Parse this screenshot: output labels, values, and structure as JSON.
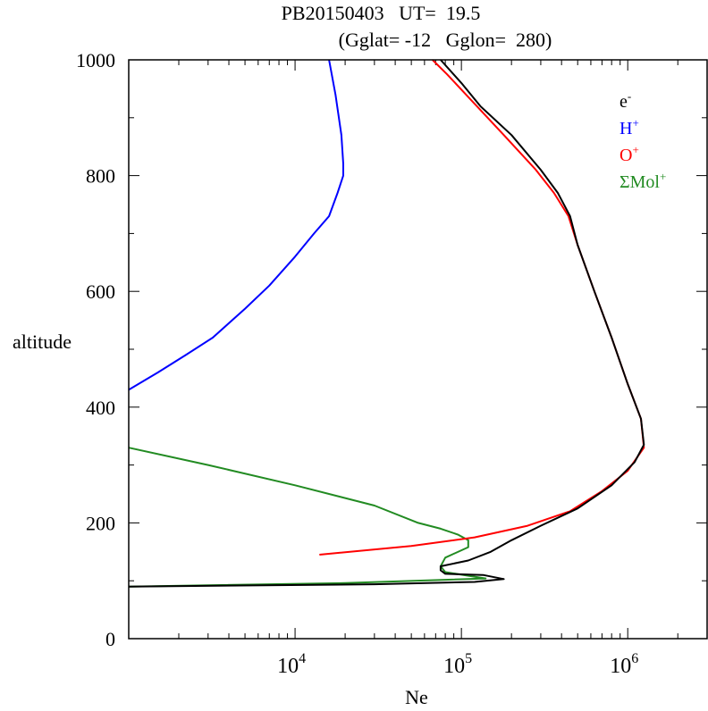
{
  "chart_data": {
    "type": "line",
    "title": "PB20150403   UT=  19.5",
    "subtitle": "(Gglat= -12   Gglon=  280)",
    "xlabel": "Ne",
    "ylabel": "altitude",
    "xscale": "log",
    "xlim": [
      1000,
      3000000
    ],
    "ylim": [
      0,
      1000
    ],
    "x_ticks": [
      {
        "base": "10",
        "exp": "4",
        "value": 10000
      },
      {
        "base": "10",
        "exp": "5",
        "value": 100000
      },
      {
        "base": "10",
        "exp": "6",
        "value": 1000000
      }
    ],
    "y_ticks": [
      "0",
      "200",
      "400",
      "600",
      "800",
      "1000"
    ],
    "grid": false,
    "legend_placement": "top-right",
    "series": [
      {
        "label_base": "e",
        "label_sup": "-",
        "color": "#000000",
        "points": [
          [
            1000,
            90
          ],
          [
            2500,
            91
          ],
          [
            30000,
            94
          ],
          [
            120000,
            98
          ],
          [
            180000,
            103
          ],
          [
            135000,
            110
          ],
          [
            80000,
            112
          ],
          [
            75000,
            118
          ],
          [
            75000,
            125
          ],
          [
            110000,
            135
          ],
          [
            150000,
            150
          ],
          [
            200000,
            170
          ],
          [
            300000,
            195
          ],
          [
            500000,
            225
          ],
          [
            800000,
            265
          ],
          [
            1100000,
            305
          ],
          [
            1250000,
            335
          ],
          [
            1200000,
            380
          ],
          [
            1000000,
            440
          ],
          [
            800000,
            520
          ],
          [
            630000,
            600
          ],
          [
            500000,
            680
          ],
          [
            450000,
            730
          ],
          [
            380000,
            770
          ],
          [
            300000,
            810
          ],
          [
            200000,
            870
          ],
          [
            130000,
            920
          ],
          [
            100000,
            960
          ],
          [
            75000,
            1000
          ]
        ]
      },
      {
        "label_base": "H",
        "label_sup": "+",
        "color": "#0000ff",
        "points": [
          [
            1000,
            430
          ],
          [
            1500,
            460
          ],
          [
            2200,
            490
          ],
          [
            3200,
            520
          ],
          [
            5000,
            570
          ],
          [
            7000,
            610
          ],
          [
            10000,
            660
          ],
          [
            13000,
            700
          ],
          [
            16000,
            730
          ],
          [
            18000,
            770
          ],
          [
            19500,
            800
          ],
          [
            19500,
            820
          ],
          [
            19000,
            870
          ],
          [
            17500,
            940
          ],
          [
            16000,
            1000
          ]
        ]
      },
      {
        "label_base": "O",
        "label_sup": "+",
        "color": "#ff0000",
        "points": [
          [
            14000,
            145
          ],
          [
            50000,
            160
          ],
          [
            120000,
            175
          ],
          [
            250000,
            195
          ],
          [
            450000,
            220
          ],
          [
            700000,
            255
          ],
          [
            1000000,
            290
          ],
          [
            1250000,
            330
          ],
          [
            1200000,
            380
          ],
          [
            1000000,
            440
          ],
          [
            800000,
            520
          ],
          [
            630000,
            600
          ],
          [
            500000,
            680
          ],
          [
            440000,
            730
          ],
          [
            360000,
            770
          ],
          [
            280000,
            810
          ],
          [
            180000,
            870
          ],
          [
            115000,
            930
          ],
          [
            82000,
            975
          ],
          [
            67000,
            1000
          ]
        ]
      },
      {
        "label_base": "ΣMol",
        "label_sup": "+",
        "color": "#228b22",
        "points": [
          [
            1000,
            330
          ],
          [
            3000,
            300
          ],
          [
            10000,
            265
          ],
          [
            30000,
            230
          ],
          [
            55000,
            200
          ],
          [
            75000,
            190
          ],
          [
            95000,
            180
          ],
          [
            110000,
            170
          ],
          [
            110000,
            158
          ],
          [
            80000,
            140
          ],
          [
            75000,
            125
          ],
          [
            80000,
            115
          ],
          [
            140000,
            104
          ],
          [
            20000,
            96
          ],
          [
            1000,
            90
          ]
        ]
      }
    ]
  }
}
